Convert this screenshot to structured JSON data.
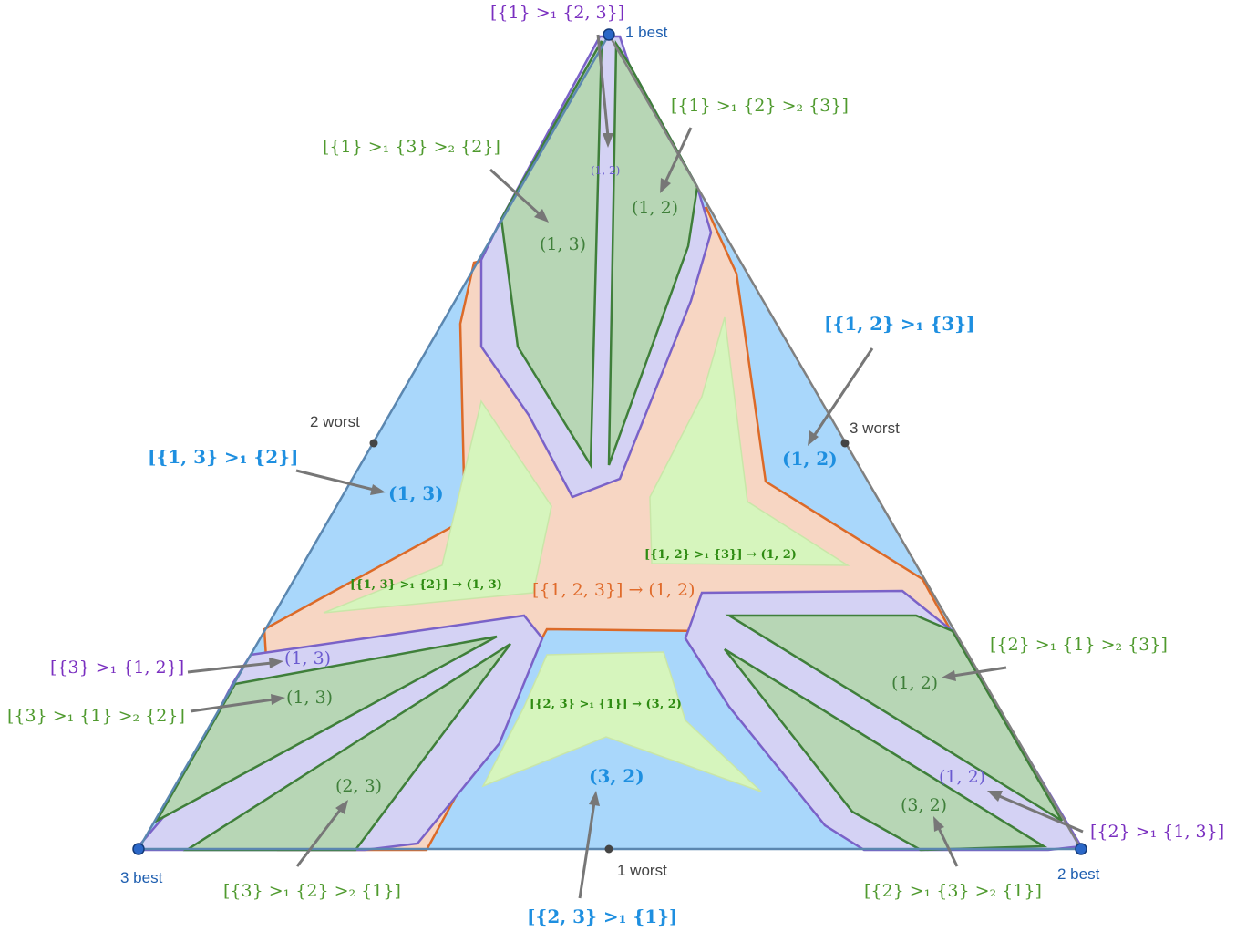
{
  "vertices": {
    "top": "1 best",
    "right": "2 best",
    "left": "3 best"
  },
  "edge_midpoints": {
    "left": "2 worst",
    "right": "3 worst",
    "bottom": "1 worst"
  },
  "labels": {
    "top_purple": "[{1} >₁ {2, 3}]",
    "top_right_green": "[{1} >₁ {2} >₂ {3}]",
    "top_left_green": "[{1} >₁ {3} >₂ {2}]",
    "right_blue": "[{1, 2} >₁ {3}]",
    "left_blue": "[{1, 3} >₁ {2}]",
    "left_purple": "[{3} >₁ {1, 2}]",
    "left_green": "[{3} >₁ {1} >₂ {2}]",
    "right_green_mid": "[{2} >₁ {1} >₂ {3}]",
    "right_purple": "[{2} >₁ {1, 3}]",
    "bottom_left_green": "[{3} >₁ {2} >₂ {1}]",
    "bottom_blue": "[{2, 3} >₁ {1}]",
    "bottom_right_green": "[{2} >₁ {3} >₂ {1}]"
  },
  "region_values": {
    "top_purple": "(1, 2)",
    "top_right_green": "(1, 2)",
    "top_left_green": "(1, 3)",
    "right_blue": "(1, 2)",
    "left_blue": "(1, 3)",
    "left_purple": "(1, 3)",
    "left_green": "(1, 3)",
    "right_green_mid": "(1, 2)",
    "right_purple": "(1, 2)",
    "bottom_left_green": "(2, 3)",
    "bottom_blue": "(3, 2)",
    "bottom_right_green": "(3, 2)"
  },
  "inner": {
    "center": "[{1, 2, 3}] → (1, 2)",
    "star_right": "[{1, 2} >₁ {3}] → (1, 2)",
    "star_left": "[{1, 3} >₁ {2}] → (1, 3)",
    "star_bottom": "[{2, 3} >₁ {1}] → (3, 2)"
  },
  "colors": {
    "blue_region": "#a9d7fb",
    "orange_region": "#f7d6c3",
    "light_green_region": "#d6f5bd",
    "purple_region": "#d4d2f4",
    "green_region": "#b7d6b5",
    "green_edge": "#3f7f3a",
    "purple_edge": "#7a62c8",
    "orange_edge": "#dc6a28",
    "blue_edge": "#5b87b0"
  }
}
